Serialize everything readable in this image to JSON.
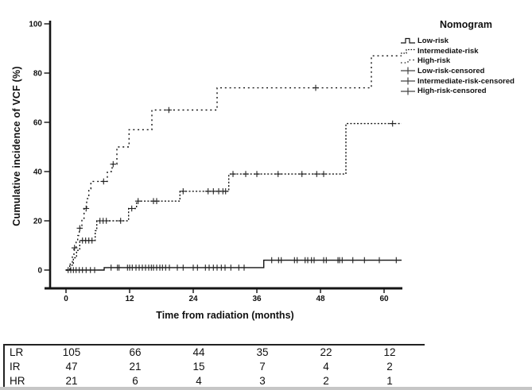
{
  "legend": {
    "title": "Nomogram",
    "entries": [
      {
        "label": "Low-risk",
        "symbol": "solid-step-line"
      },
      {
        "label": "Intermediate-risk",
        "symbol": "dense-dotted-step-line"
      },
      {
        "label": "High-risk",
        "symbol": "sparse-dotted-line"
      },
      {
        "label": "Low-risk-censored",
        "symbol": "plus-marker"
      },
      {
        "label": "Intermediate-risk-censored",
        "symbol": "plus-marker"
      },
      {
        "label": "High-risk-censored",
        "symbol": "plus-marker"
      }
    ]
  },
  "chart_data": {
    "type": "line",
    "subtype": "step-cumulative-incidence",
    "title": "Nomogram",
    "xlabel": "Time from radiation (months)",
    "ylabel": "Cumulative incidence of VCF (%)",
    "xlim": [
      0,
      63.5
    ],
    "ylim": [
      0,
      100
    ],
    "x_ticks": [
      0,
      12,
      24,
      36,
      48,
      60
    ],
    "y_ticks": [
      0,
      20,
      40,
      60,
      80,
      100
    ],
    "grid": false,
    "legend_position": "top-right",
    "line_color": "#141414",
    "series": [
      {
        "name": "Low-risk",
        "line": "solid",
        "steps": [
          [
            0,
            0
          ],
          [
            7.2,
            0
          ],
          [
            7.2,
            1
          ],
          [
            37.3,
            1
          ],
          [
            37.3,
            4
          ],
          [
            63.3,
            4
          ]
        ],
        "censored_label": "Low-risk-censored",
        "censored": [
          [
            0.4,
            0
          ],
          [
            0.9,
            0
          ],
          [
            1.4,
            0
          ],
          [
            1.9,
            0
          ],
          [
            2.5,
            0
          ],
          [
            3.1,
            0
          ],
          [
            3.8,
            0
          ],
          [
            4.6,
            0
          ],
          [
            5.4,
            0
          ],
          [
            8.5,
            1
          ],
          [
            9.7,
            1
          ],
          [
            10.0,
            1
          ],
          [
            11.6,
            1
          ],
          [
            12.0,
            1
          ],
          [
            12.5,
            1
          ],
          [
            13.2,
            1
          ],
          [
            13.8,
            1
          ],
          [
            14.4,
            1
          ],
          [
            15.0,
            1
          ],
          [
            15.6,
            1
          ],
          [
            16.1,
            1
          ],
          [
            16.5,
            1
          ],
          [
            17.1,
            1
          ],
          [
            17.7,
            1
          ],
          [
            18.2,
            1
          ],
          [
            18.8,
            1
          ],
          [
            19.5,
            1
          ],
          [
            21.0,
            1
          ],
          [
            22.1,
            1
          ],
          [
            24.0,
            1
          ],
          [
            24.8,
            1
          ],
          [
            26.3,
            1
          ],
          [
            27.0,
            1
          ],
          [
            27.8,
            1
          ],
          [
            28.5,
            1
          ],
          [
            29.3,
            1
          ],
          [
            30.0,
            1
          ],
          [
            31.1,
            1
          ],
          [
            32.6,
            1
          ],
          [
            33.6,
            1
          ],
          [
            38.8,
            4
          ],
          [
            40.1,
            4
          ],
          [
            40.6,
            4
          ],
          [
            43.1,
            4
          ],
          [
            43.6,
            4
          ],
          [
            45.1,
            4
          ],
          [
            45.6,
            4
          ],
          [
            46.3,
            4
          ],
          [
            46.8,
            4
          ],
          [
            48.6,
            4
          ],
          [
            49.1,
            4
          ],
          [
            51.3,
            4
          ],
          [
            51.6,
            4
          ],
          [
            52.1,
            4
          ],
          [
            54.1,
            4
          ],
          [
            56.3,
            4
          ],
          [
            59.1,
            4
          ],
          [
            62.3,
            4
          ]
        ]
      },
      {
        "name": "Intermediate-risk",
        "line": "dotted-dense",
        "steps": [
          [
            0,
            0
          ],
          [
            0.7,
            0
          ],
          [
            0.7,
            2
          ],
          [
            1.4,
            2
          ],
          [
            1.4,
            5
          ],
          [
            2.0,
            5
          ],
          [
            2.0,
            8
          ],
          [
            2.6,
            8
          ],
          [
            2.6,
            12
          ],
          [
            5.5,
            12
          ],
          [
            5.5,
            16
          ],
          [
            5.8,
            16
          ],
          [
            5.8,
            20
          ],
          [
            11.8,
            20
          ],
          [
            11.8,
            25
          ],
          [
            13.3,
            25
          ],
          [
            13.3,
            28
          ],
          [
            21.5,
            28
          ],
          [
            21.5,
            32
          ],
          [
            30.7,
            32
          ],
          [
            30.7,
            39
          ],
          [
            52.8,
            39
          ],
          [
            52.8,
            59.5
          ],
          [
            63.3,
            59.5
          ]
        ],
        "censored_label": "Intermediate-risk-censored",
        "censored": [
          [
            3.1,
            12
          ],
          [
            3.7,
            12
          ],
          [
            4.3,
            12
          ],
          [
            4.9,
            12
          ],
          [
            6.4,
            20
          ],
          [
            7.0,
            20
          ],
          [
            7.6,
            20
          ],
          [
            10.3,
            20
          ],
          [
            12.4,
            25
          ],
          [
            13.6,
            28
          ],
          [
            16.5,
            28
          ],
          [
            17.1,
            28
          ],
          [
            22.1,
            32
          ],
          [
            26.8,
            32
          ],
          [
            27.8,
            32
          ],
          [
            28.8,
            32
          ],
          [
            29.6,
            32
          ],
          [
            30.1,
            32
          ],
          [
            31.5,
            39
          ],
          [
            33.9,
            39
          ],
          [
            36.0,
            39
          ],
          [
            40.0,
            39
          ],
          [
            44.5,
            39
          ],
          [
            47.3,
            39
          ],
          [
            48.6,
            39
          ],
          [
            61.6,
            59.5
          ]
        ]
      },
      {
        "name": "High-risk",
        "line": "dotted-sparse",
        "steps": [
          [
            0,
            0
          ],
          [
            0.8,
            0
          ],
          [
            0.8,
            3
          ],
          [
            1.2,
            3
          ],
          [
            1.2,
            6
          ],
          [
            1.5,
            6
          ],
          [
            1.5,
            9
          ],
          [
            1.9,
            9
          ],
          [
            1.9,
            12
          ],
          [
            2.2,
            12
          ],
          [
            2.2,
            14
          ],
          [
            2.5,
            14
          ],
          [
            2.5,
            17
          ],
          [
            3.0,
            17
          ],
          [
            3.0,
            21
          ],
          [
            3.4,
            21
          ],
          [
            3.4,
            25
          ],
          [
            3.9,
            25
          ],
          [
            3.9,
            29
          ],
          [
            4.3,
            29
          ],
          [
            4.3,
            33
          ],
          [
            4.7,
            33
          ],
          [
            4.7,
            36
          ],
          [
            7.8,
            36
          ],
          [
            7.8,
            40
          ],
          [
            8.7,
            40
          ],
          [
            8.7,
            43
          ],
          [
            9.6,
            43
          ],
          [
            9.6,
            50
          ],
          [
            11.9,
            50
          ],
          [
            11.9,
            57
          ],
          [
            16.2,
            57
          ],
          [
            16.2,
            65
          ],
          [
            28.5,
            65
          ],
          [
            28.5,
            74
          ],
          [
            57.6,
            74
          ],
          [
            57.6,
            87
          ],
          [
            63.3,
            87
          ]
        ],
        "censored_label": "High-risk-censored",
        "censored": [
          [
            1.6,
            9
          ],
          [
            2.6,
            17
          ],
          [
            3.8,
            25
          ],
          [
            7.1,
            36
          ],
          [
            8.9,
            43
          ],
          [
            19.4,
            65
          ],
          [
            47.1,
            74
          ]
        ]
      }
    ],
    "number_at_risk": {
      "row_labels": [
        "LR",
        "IR",
        "HR"
      ],
      "time_points": [
        0,
        12,
        24,
        36,
        48,
        60
      ],
      "counts": [
        [
          105,
          66,
          44,
          35,
          22,
          12
        ],
        [
          47,
          21,
          15,
          7,
          4,
          2
        ],
        [
          21,
          6,
          4,
          3,
          2,
          1
        ]
      ]
    }
  }
}
